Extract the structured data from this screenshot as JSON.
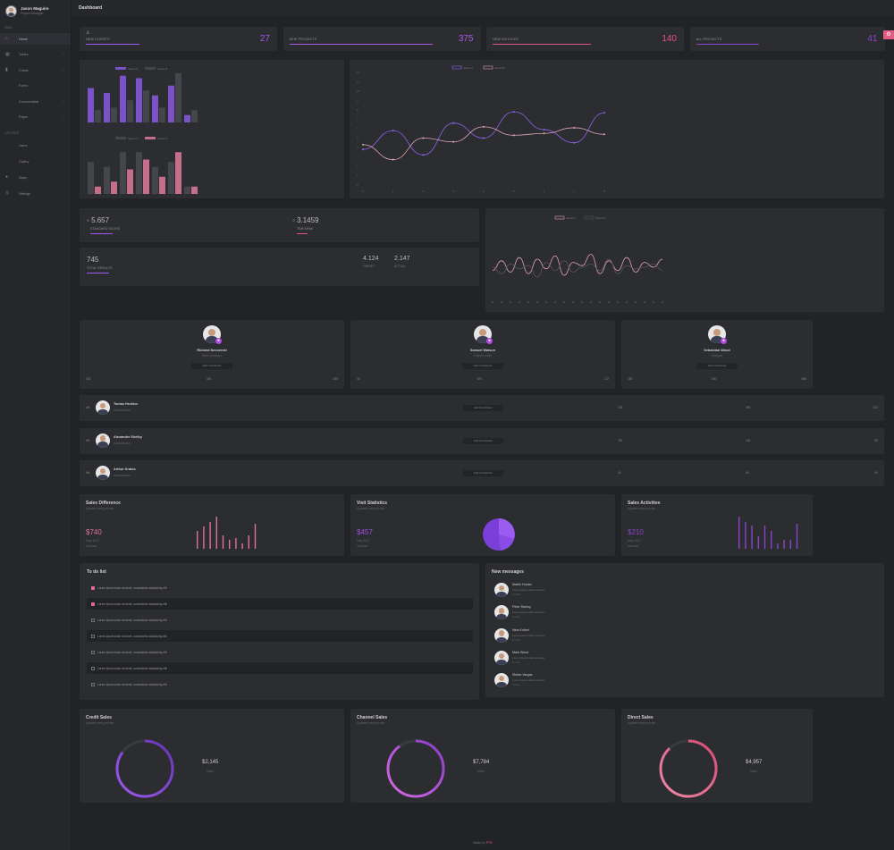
{
  "sidebar": {
    "user": {
      "name": "Jason Maguire",
      "role": "Project Manager"
    },
    "section1": "Main",
    "items": [
      {
        "label": "Home",
        "icon": "home-icon",
        "active": true,
        "chevron": false
      },
      {
        "label": "Tables",
        "icon": "table-icon",
        "chevron": true
      },
      {
        "label": "Charts",
        "icon": "chart-icon",
        "chevron": true
      },
      {
        "label": "Forms",
        "icon": "form-icon",
        "chevron": true
      },
      {
        "label": "Commentable",
        "icon": "comment-icon",
        "chevron": true
      },
      {
        "label": "Pages",
        "icon": "page-icon",
        "chevron": true
      }
    ],
    "section2": "Utilities",
    "items2": [
      {
        "label": "Users",
        "icon": "user-icon"
      },
      {
        "label": "Gallery",
        "icon": "gallery-icon"
      },
      {
        "label": "Maps",
        "icon": "map-pin-icon"
      },
      {
        "label": "Settings",
        "icon": "settings-icon"
      }
    ]
  },
  "header": {
    "title": "Dashboard"
  },
  "stats": [
    {
      "label": "NEW CLIENTS",
      "value": "27",
      "color": "#9b59f0",
      "progress": 0.3
    },
    {
      "label": "NEW PROJECTS",
      "value": "375",
      "color": "#a95ae8",
      "progress": 0.8
    },
    {
      "label": "NEW INVOICES",
      "value": "140",
      "color": "#e2577f",
      "progress": 0.55
    },
    {
      "label": "ALL PROJECTS",
      "value": "41",
      "color": "#8e44d8",
      "progress": 0.35
    }
  ],
  "chart_data": [
    {
      "type": "bar",
      "legend": [
        "Series A",
        "Series B"
      ],
      "categories": [
        "1",
        "2",
        "3",
        "4",
        "5",
        "6",
        "7"
      ],
      "series": [
        {
          "values": [
            70,
            60,
            95,
            90,
            55,
            75,
            15
          ],
          "color": "#7b52c7"
        },
        {
          "values": [
            25,
            30,
            45,
            65,
            30,
            100,
            25
          ],
          "color": "#45464b"
        }
      ]
    },
    {
      "type": "bar",
      "legend": [
        "Series C",
        "Series D"
      ],
      "categories": [
        "1",
        "2",
        "3",
        "4",
        "5",
        "6",
        "7"
      ],
      "series": [
        {
          "values": [
            65,
            55,
            85,
            85,
            55,
            65,
            15
          ],
          "color": "#45464b"
        },
        {
          "values": [
            15,
            25,
            50,
            70,
            35,
            85,
            15
          ],
          "color": "#c46e8a"
        }
      ]
    },
    {
      "type": "line",
      "legend": [
        "Series A",
        "Series B"
      ],
      "x": [
        0,
        1,
        2,
        3,
        4,
        5,
        6,
        7,
        8
      ],
      "yticks": [
        0,
        1,
        2,
        3,
        4,
        5,
        6,
        7,
        8,
        9,
        10,
        11,
        12
      ],
      "series": [
        {
          "values": [
            3.8,
            5.8,
            3.2,
            6.6,
            5,
            7.8,
            5.9,
            4.5,
            7.7
          ],
          "color": "#8d62ea"
        },
        {
          "values": [
            4.3,
            2.7,
            5,
            4.6,
            6.2,
            5.3,
            5.5,
            6.1,
            5.4
          ],
          "color": "#e0a3b3"
        }
      ]
    },
    {
      "type": "line",
      "legend": [
        "Series A",
        "Series B"
      ],
      "series": [
        {
          "values": [
            40,
            70,
            35,
            80,
            30,
            75,
            45,
            85,
            25,
            65,
            55,
            90,
            30,
            70,
            40,
            80,
            35,
            65,
            50,
            75
          ],
          "color": "#e6a0b8"
        },
        {
          "values": [
            50,
            30,
            60,
            45,
            55,
            20,
            65,
            40,
            70,
            35,
            50,
            60,
            40,
            75,
            30,
            55,
            45,
            50,
            60,
            40
          ],
          "color": "#555"
        }
      ]
    }
  ],
  "kpi": [
    {
      "value": "5.657",
      "label": "STANDARD SCORE"
    },
    {
      "value": "3.1459",
      "label": "TIMESPAN"
    }
  ],
  "kpi2": {
    "value": "745",
    "label": "TOTAL RESULTS",
    "a": "4.124",
    "a_label": "TARGET",
    "b": "2.147",
    "b_label": "ACTUAL"
  },
  "profiles": [
    {
      "name": "Richard Nevoreski",
      "role": "Web Developer",
      "button": "Add Contributor",
      "m1": "150",
      "m2": "340",
      "m3": "460"
    },
    {
      "name": "Samuel Watson",
      "role": "Project Leader",
      "button": "Add Contributor",
      "m1": "40",
      "m2": "870",
      "m3": "172"
    },
    {
      "name": "Sebastian Wood",
      "role": "Designer",
      "button": "Add Contributor",
      "m1": "150",
      "m2": "340",
      "m3": "580"
    }
  ],
  "contacts": [
    {
      "rank": "4th",
      "name": "Tomas Hecktor",
      "role": "Administrator",
      "button": "Add Contributor",
      "m1": "150",
      "m2": "390",
      "m3": "510"
    },
    {
      "rank": "5th",
      "name": "Alexander Shelby",
      "role": "Administrator",
      "button": "Add Contributor",
      "m1": "760",
      "m2": "120",
      "m3": "50"
    },
    {
      "rank": "6th",
      "name": "Arthur Kratos",
      "role": "Administrator",
      "button": "Add Contributor",
      "m1": "40",
      "m2": "60",
      "m3": "40"
    }
  ],
  "widgets": [
    {
      "title": "Sales Difference",
      "sub": "Updated every minute",
      "value": "$740",
      "date": "May 2017",
      "tag": "Increase",
      "color": "#e0729a"
    },
    {
      "title": "Visit Statistics",
      "sub": "Updated every minute",
      "value": "$457",
      "date": "May 2017",
      "tag": "Increase",
      "color": "#a24fe0"
    },
    {
      "title": "Sales Activities",
      "sub": "Updated every minute",
      "value": "$210",
      "date": "May 2017",
      "tag": "Increase",
      "color": "#8a43c8"
    }
  ],
  "todo": {
    "title": "To do list",
    "items": [
      {
        "text": "Lorem ipsum dolor sit amet, consectetur adipisicing elit.",
        "done": true
      },
      {
        "text": "Lorem ipsum dolor sit amet, consectetur adipisicing elit.",
        "done": true
      },
      {
        "text": "Lorem ipsum dolor sit amet, consectetur adipisicing elit.",
        "done": false
      },
      {
        "text": "Lorem ipsum dolor sit amet, consectetur adipisicing elit.",
        "done": false
      },
      {
        "text": "Lorem ipsum dolor sit amet, consectetur adipisicing elit.",
        "done": false
      },
      {
        "text": "Lorem ipsum dolor sit amet, consectetur adipisicing elit.",
        "done": false
      },
      {
        "text": "Lorem ipsum dolor sit amet, consectetur adipisicing elit.",
        "done": false
      }
    ]
  },
  "messages": {
    "title": "New messages",
    "items": [
      {
        "name": "Martin Hunter",
        "text": "Lorem ipsum dolor sit amet",
        "time": "5 mins"
      },
      {
        "name": "Peter Ramsy",
        "text": "Lorem ipsum dolor sit amet",
        "time": "5 mins"
      },
      {
        "name": "Nina Kobrel",
        "text": "Lorem ipsum dolor sit amet",
        "time": "5 mins"
      },
      {
        "name": "Mark Wood",
        "text": "Lorem ipsum dolor sit amet",
        "time": "5 mins"
      },
      {
        "name": "Stefan Vargas",
        "text": "Lorem ipsum dolor sit amet",
        "time": "5 mins"
      }
    ]
  },
  "rings": [
    {
      "title": "Credit Sales",
      "sub": "Updated every minute",
      "value": "$2,145",
      "label": "Sales",
      "c1": "#9b59f0",
      "c2": "#6a34b8",
      "progress": 0.85
    },
    {
      "title": "Channel Sales",
      "sub": "Updated every minute",
      "value": "$7,784",
      "label": "Sales",
      "c1": "#d56be0",
      "c2": "#8a3cc8",
      "progress": 0.9
    },
    {
      "title": "Direct Sales",
      "sub": "Updated every minute",
      "value": "$4,957",
      "label": "Sales",
      "c1": "#f08aa6",
      "c2": "#d84a74",
      "progress": 0.88
    }
  ],
  "footer": {
    "text": "Made by",
    "brand": "PTR"
  }
}
